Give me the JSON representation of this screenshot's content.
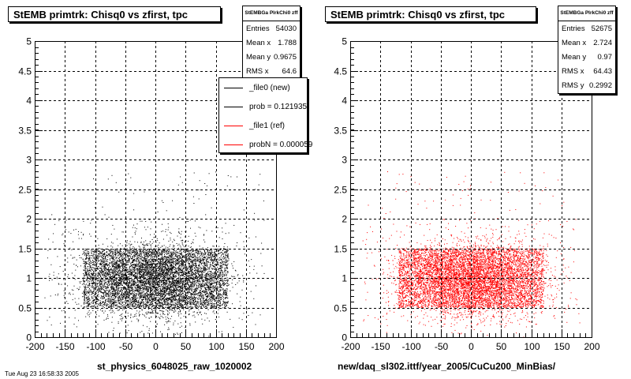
{
  "footer": "Tue Aug 23 16:58:33 2005",
  "chart_data": [
    {
      "type": "scatter",
      "title": "StEMB primtrk: Chisq0 vs zfirst, tpc",
      "xlabel": "st_physics_6048025_raw_1020002",
      "ylabel": "",
      "xlim": [
        -200,
        200
      ],
      "ylim": [
        0,
        5
      ],
      "xticks": [
        -200,
        -150,
        -100,
        -50,
        0,
        50,
        100,
        150,
        200
      ],
      "yticks": [
        0,
        0.5,
        1,
        1.5,
        2,
        2.5,
        3,
        3.5,
        4,
        4.5,
        5
      ],
      "grid": true,
      "marker_color": "#000000",
      "dense_region": {
        "x": [
          -120,
          120
        ],
        "y": [
          0.5,
          1.5
        ]
      },
      "stats": {
        "header": "StEMBGa PlrkChi0 zff",
        "rows": [
          {
            "label": "Entries",
            "value": "54030"
          },
          {
            "label": "Mean x",
            "value": "1.788"
          },
          {
            "label": "Mean y",
            "value": "0.9675"
          },
          {
            "label": "RMS x",
            "value": "64.6"
          }
        ]
      },
      "legend": [
        {
          "label": "_file0 (new)",
          "color": "#000000"
        },
        {
          "label": "prob = 0.121935",
          "color": "#000000"
        },
        {
          "label": "_file1 (ref)",
          "color": "#ff0000"
        },
        {
          "label": "probN = 0.000059",
          "color": "#ff0000"
        }
      ]
    },
    {
      "type": "scatter",
      "title": "StEMB primtrk: Chisq0 vs zfirst, tpc",
      "xlabel": "new/daq_sl302.ittf/year_2005/CuCu200_MinBias/",
      "ylabel": "",
      "xlim": [
        -200,
        200
      ],
      "ylim": [
        0,
        5
      ],
      "xticks": [
        -200,
        -150,
        -100,
        -50,
        0,
        50,
        100,
        150,
        200
      ],
      "yticks": [
        0,
        0.5,
        1,
        1.5,
        2,
        2.5,
        3,
        3.5,
        4,
        4.5,
        5
      ],
      "grid": true,
      "marker_color": "#ff0000",
      "dense_region": {
        "x": [
          -120,
          120
        ],
        "y": [
          0.5,
          1.5
        ]
      },
      "stats": {
        "header": "StEMBGa PlrkChi0 zff",
        "rows": [
          {
            "label": "Entries",
            "value": "52675"
          },
          {
            "label": "Mean x",
            "value": "2.724"
          },
          {
            "label": "Mean y",
            "value": "0.97"
          },
          {
            "label": "RMS x",
            "value": "64.43"
          },
          {
            "label": "RMS y",
            "value": "0.2992"
          }
        ]
      }
    }
  ]
}
